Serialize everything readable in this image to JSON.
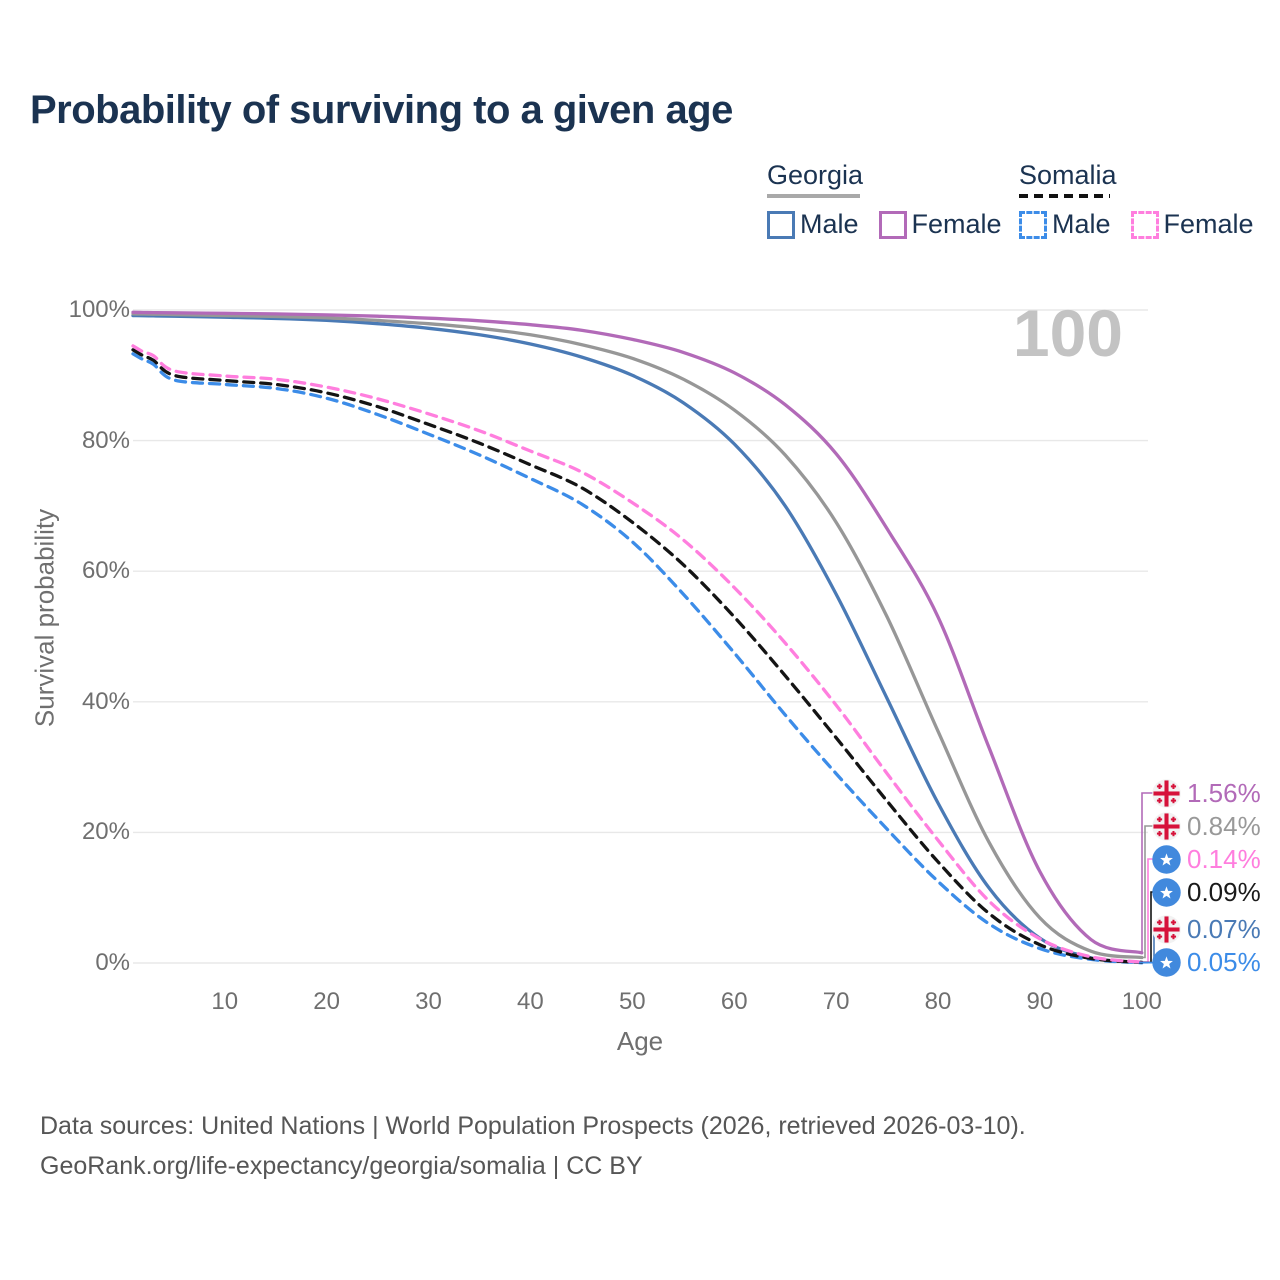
{
  "title": "Probability of surviving to a given age",
  "watermark": "100",
  "legend": {
    "groups": [
      {
        "country": "Georgia",
        "items": [
          {
            "label": "Male"
          },
          {
            "label": "Female"
          }
        ]
      },
      {
        "country": "Somalia",
        "items": [
          {
            "label": "Male"
          },
          {
            "label": "Female"
          }
        ]
      }
    ]
  },
  "chart_data": {
    "type": "line",
    "title": "Probability of surviving to a given age",
    "xlabel": "Age",
    "ylabel": "Survival probability",
    "xlim": [
      1,
      100
    ],
    "ylim": [
      0,
      100
    ],
    "grid": "horizontal",
    "legend_position": "top-right",
    "x_ticks": [
      10,
      20,
      30,
      40,
      50,
      60,
      70,
      80,
      90,
      100
    ],
    "y_ticks_percent": [
      0,
      20,
      40,
      60,
      80,
      100
    ],
    "ages": [
      1,
      2,
      3,
      5,
      10,
      15,
      20,
      25,
      30,
      35,
      40,
      45,
      50,
      55,
      60,
      65,
      70,
      75,
      80,
      85,
      90,
      95,
      100
    ],
    "series": [
      {
        "id": "georgia_male",
        "country": "Georgia",
        "sex": "Male",
        "color": "#4a7ab5",
        "dashed": false,
        "values": [
          99.15,
          99.12,
          99.1,
          99.05,
          98.9,
          98.7,
          98.4,
          97.9,
          97.2,
          96.2,
          94.8,
          92.8,
          90.0,
          85.8,
          79.5,
          70.0,
          56.5,
          40.5,
          24.5,
          11.5,
          3.8,
          0.8,
          0.07
        ]
      },
      {
        "id": "georgia_both",
        "country": "Georgia",
        "sex": "Both sexes",
        "color": "#979797",
        "dashed": false,
        "values": [
          99.4,
          99.38,
          99.36,
          99.3,
          99.15,
          99.0,
          98.8,
          98.4,
          97.9,
          97.2,
          96.2,
          94.7,
          92.6,
          89.4,
          84.7,
          77.8,
          67.5,
          53.0,
          35.5,
          18.5,
          6.9,
          1.8,
          0.84
        ]
      },
      {
        "id": "georgia_female",
        "country": "Georgia",
        "sex": "Female",
        "color": "#b26ab8",
        "dashed": false,
        "values": [
          99.65,
          99.62,
          99.6,
          99.57,
          99.5,
          99.4,
          99.25,
          99.05,
          98.75,
          98.35,
          97.75,
          96.9,
          95.5,
          93.5,
          90.4,
          85.5,
          78.0,
          66.5,
          53.0,
          33.0,
          14.0,
          3.6,
          1.56
        ]
      },
      {
        "id": "somalia_male",
        "country": "Somalia",
        "sex": "Male",
        "color": "#3c8ce8",
        "dashed": true,
        "values": [
          93.3,
          92.4,
          91.7,
          89.3,
          88.6,
          88.0,
          86.5,
          84.0,
          81.0,
          77.8,
          74.2,
          70.3,
          64.5,
          56.5,
          47.5,
          38.0,
          29.0,
          20.5,
          12.5,
          6.0,
          2.2,
          0.55,
          0.05
        ]
      },
      {
        "id": "somalia_both",
        "country": "Somalia",
        "sex": "Both sexes",
        "color": "#141414",
        "dashed": true,
        "values": [
          93.9,
          93.0,
          92.3,
          90.0,
          89.2,
          88.6,
          87.3,
          85.2,
          82.5,
          79.6,
          76.3,
          72.8,
          67.5,
          61.0,
          53.0,
          44.0,
          34.5,
          24.8,
          15.5,
          7.6,
          2.8,
          0.7,
          0.09
        ]
      },
      {
        "id": "somalia_female",
        "country": "Somalia",
        "sex": "Female",
        "color": "#ff7ede",
        "dashed": true,
        "values": [
          94.5,
          93.6,
          93.0,
          90.7,
          89.9,
          89.4,
          88.2,
          86.4,
          84.1,
          81.5,
          78.4,
          75.2,
          70.5,
          64.8,
          57.5,
          49.0,
          39.5,
          29.0,
          18.8,
          9.5,
          3.7,
          0.95,
          0.14
        ]
      }
    ]
  },
  "end_labels": [
    {
      "flag": "georgia",
      "value": "1.56%",
      "color": "#b26ab8",
      "series": "georgia_female"
    },
    {
      "flag": "georgia",
      "value": "0.84%",
      "color": "#999999",
      "series": "georgia_both"
    },
    {
      "flag": "somalia",
      "value": "0.14%",
      "color": "#ff7ede",
      "series": "somalia_female"
    },
    {
      "flag": "somalia",
      "value": "0.09%",
      "color": "#1a1a1a",
      "series": "somalia_both"
    },
    {
      "flag": "georgia",
      "value": "0.07%",
      "color": "#4a7ab5",
      "series": "georgia_male"
    },
    {
      "flag": "somalia",
      "value": "0.05%",
      "color": "#3c8ce8",
      "series": "somalia_male"
    }
  ],
  "footer": {
    "line1": "Data sources: United Nations | World Population Prospects (2026, retrieved 2026-03-10).",
    "line2": "GeoRank.org/life-expectancy/georgia/somalia | CC BY"
  }
}
